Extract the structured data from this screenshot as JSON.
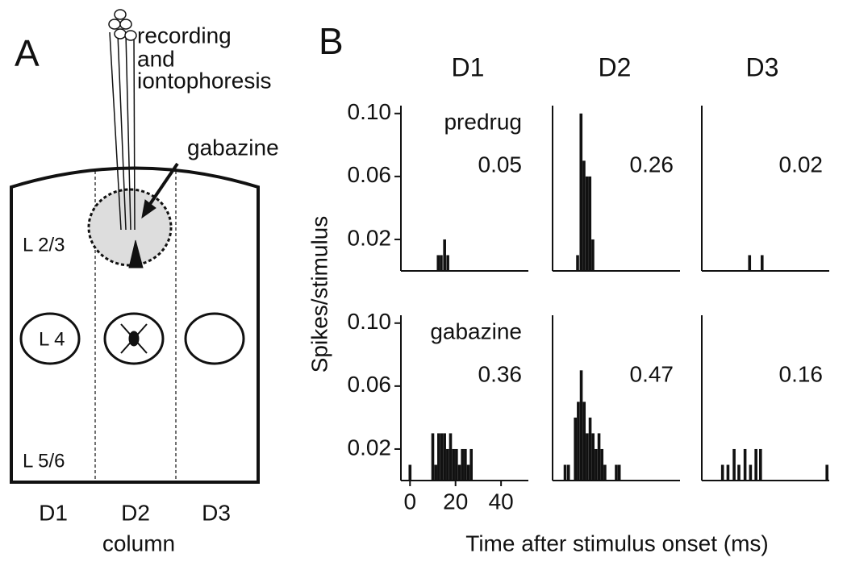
{
  "diagram": {
    "panel_label": "A",
    "electrode_label": [
      "recording",
      "and",
      "iontophoresis"
    ],
    "drug_label": "gabazine",
    "layers": [
      "L 2/3",
      "L 4",
      "L 5/6"
    ],
    "columns": [
      "D1",
      "D2",
      "D3"
    ],
    "axis_label": "column"
  },
  "figure": {
    "panel_label": "B",
    "columns": [
      "D1",
      "D2",
      "D3"
    ],
    "y_label": "Spikes/stimulus",
    "x_label": "Time after stimulus onset (ms)"
  },
  "chart_data": [
    {
      "type": "bar",
      "color": "#111111",
      "annotations": [
        "predrug",
        "0.05"
      ],
      "xlim": [
        -4,
        52
      ],
      "ylim": [
        0,
        0.105
      ],
      "yticks": [
        {
          "value": 0.1,
          "label": "0.10"
        },
        0.06,
        0.02
      ],
      "x": [
        12.4,
        13.7,
        15.2,
        16.6
      ],
      "values": [
        0.01,
        0.01,
        0.02,
        0.01
      ]
    },
    {
      "type": "bar",
      "color": "#111111",
      "annotations": [
        "0.26"
      ],
      "xlim": [
        -4,
        52
      ],
      "ylim": [
        0,
        0.105
      ],
      "x": [
        7,
        8.5,
        9.8,
        11.1,
        12.4,
        13.7
      ],
      "values": [
        0.01,
        0.1,
        0.07,
        0.06,
        0.06,
        0.02
      ]
    },
    {
      "type": "bar",
      "color": "#111111",
      "annotations": [
        "0.02"
      ],
      "xlim": [
        -4,
        52
      ],
      "ylim": [
        0,
        0.105
      ],
      "x": [
        17,
        22.5
      ],
      "values": [
        0.01,
        0.01
      ]
    },
    {
      "type": "bar",
      "color": "#111111",
      "annotations": [
        "gabazine",
        "0.36"
      ],
      "xlim": [
        -4,
        52
      ],
      "ylim": [
        0,
        0.105
      ],
      "yticks": [
        {
          "value": 0.1,
          "label": "0.10"
        },
        0.06,
        0.02
      ],
      "xticks": [
        0,
        20,
        40
      ],
      "x": [
        0,
        10,
        11.3,
        12.6,
        13.9,
        15.2,
        16.5,
        17.8,
        19.1,
        20.4,
        21.7,
        23,
        24.3,
        25.6,
        26.9
      ],
      "values": [
        0.01,
        0.03,
        0.01,
        0.03,
        0.03,
        0.03,
        0.02,
        0.03,
        0.02,
        0.02,
        0.01,
        0.02,
        0.02,
        0.01,
        0.02
      ]
    },
    {
      "type": "bar",
      "color": "#111111",
      "annotations": [
        "0.47"
      ],
      "xlim": [
        -4,
        52
      ],
      "ylim": [
        0,
        0.105
      ],
      "x": [
        1.5,
        3,
        6,
        7.3,
        8.6,
        9.9,
        11.2,
        12.5,
        13.8,
        15.1,
        16.4,
        17.7,
        19,
        24,
        25.3
      ],
      "values": [
        0.01,
        0.01,
        0.04,
        0.05,
        0.07,
        0.05,
        0.03,
        0.04,
        0.03,
        0.02,
        0.03,
        0.02,
        0.01,
        0.01,
        0.01
      ]
    },
    {
      "type": "bar",
      "color": "#111111",
      "annotations": [
        "0.16"
      ],
      "xlim": [
        -4,
        52
      ],
      "ylim": [
        0,
        0.105
      ],
      "x": [
        5.1,
        7.5,
        10.2,
        12.3,
        15,
        17.4,
        19.8,
        21.8,
        51
      ],
      "values": [
        0.01,
        0.01,
        0.02,
        0.01,
        0.02,
        0.01,
        0.02,
        0.02,
        0.01
      ]
    }
  ]
}
